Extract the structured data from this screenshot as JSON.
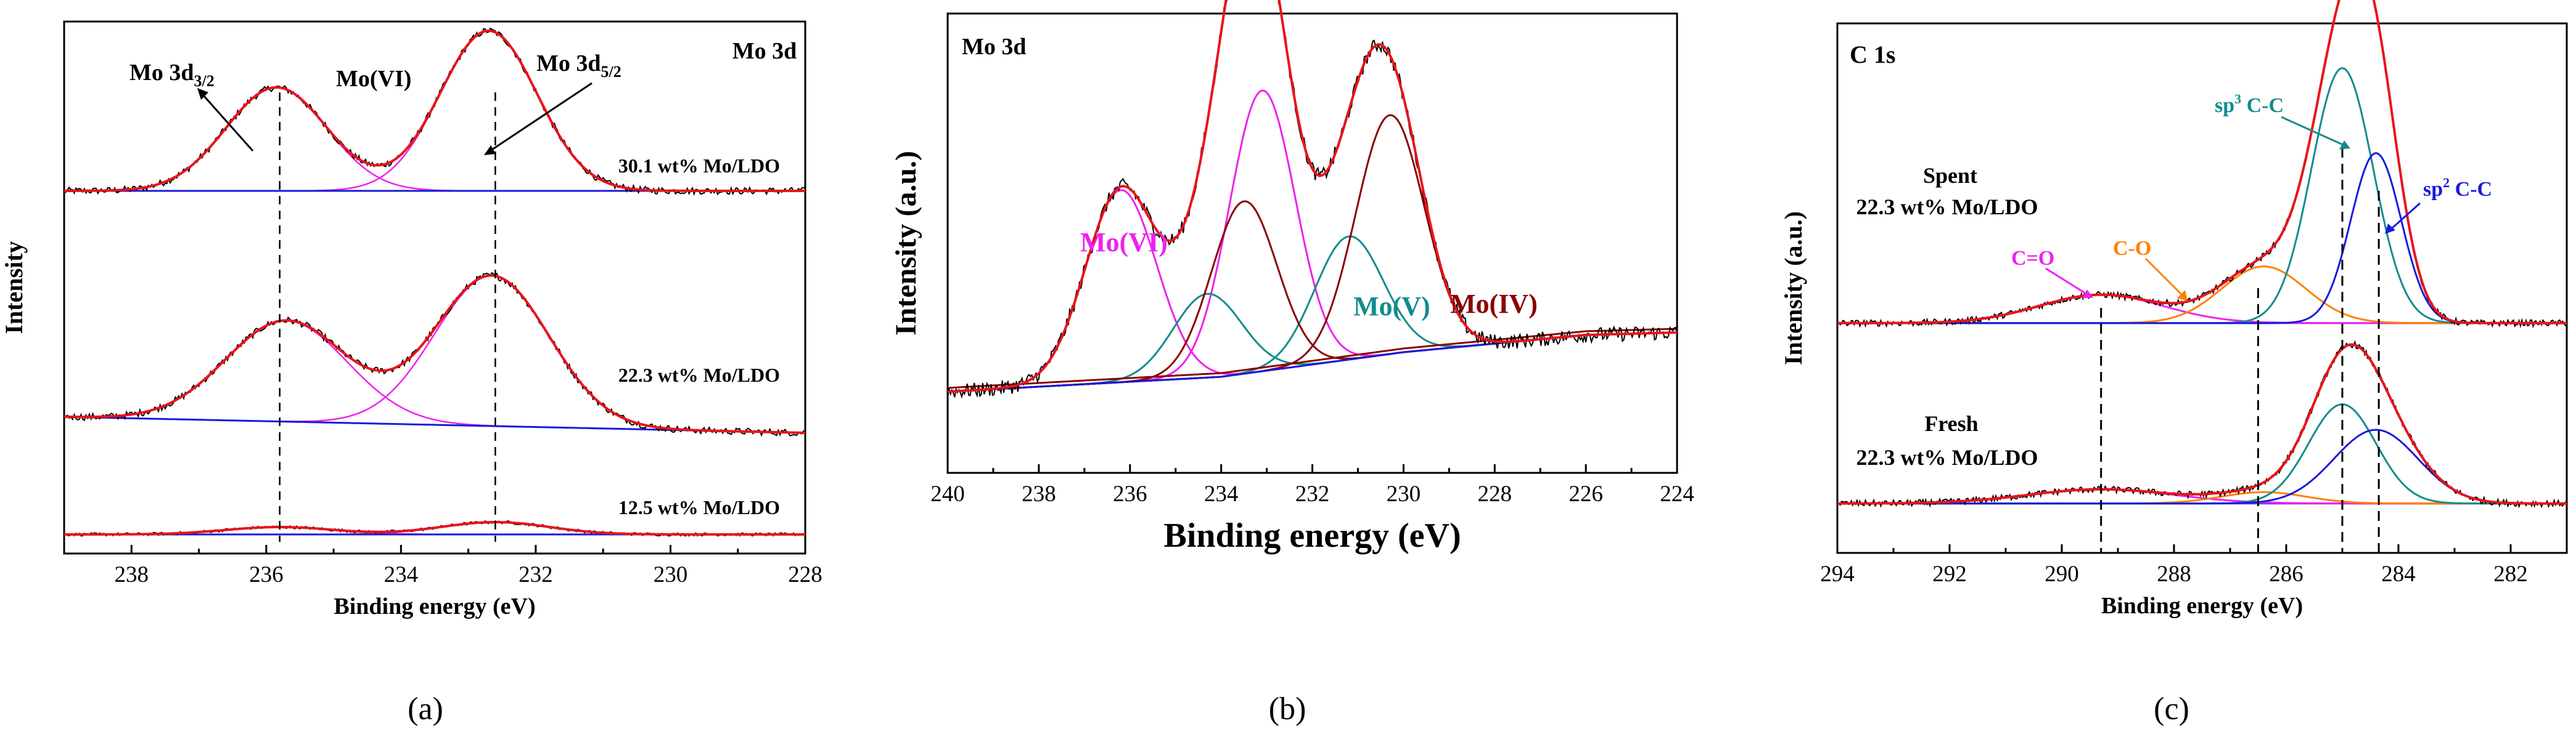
{
  "colors": {
    "raw": "#000000",
    "envelope": "#e8141b",
    "background": "#1a1adc",
    "mo6_a": "#ee22ee",
    "mo6_b": "#ee22ee",
    "mo5": "#128c8c",
    "mo4": "#8b0000",
    "c_o": "#ff8000",
    "sp3": "#128c8c",
    "sp2": "#1a1adc",
    "c_eq_o": "#ee22ee",
    "baseline_c": "#7a32e0"
  },
  "chart_data": [
    {
      "id": "a",
      "type": "line",
      "caption": "(a)",
      "xlabel": "Binding energy (eV)",
      "ylabel": "Intensity",
      "xlim": [
        239,
        228
      ],
      "xticks": [
        238,
        236,
        234,
        232,
        230,
        228
      ],
      "annotations": {
        "title": "Mo 3d",
        "mo3d32": "Mo 3d",
        "mo3d32_sub": "3/2",
        "mo6": "Mo(VI)",
        "mo3d52": "Mo 3d",
        "mo3d52_sub": "5/2"
      },
      "dashed_lines_x": [
        235.8,
        232.6
      ],
      "series": [
        {
          "name": "30.1 wt% Mo/LDO",
          "baseline": [
            1.0,
            1.0
          ],
          "peaks": [
            {
              "center": 235.85,
              "height": 4.2,
              "width": 0.75
            },
            {
              "center": 232.7,
              "height": 6.5,
              "width": 0.72
            }
          ]
        },
        {
          "name": "22.3 wt% Mo/LDO",
          "baseline": [
            0.95,
            0.3
          ],
          "peaks": [
            {
              "center": 235.7,
              "height": 4.1,
              "width": 0.9
            },
            {
              "center": 232.65,
              "height": 6.1,
              "width": 0.85
            }
          ]
        },
        {
          "name": "12.5 wt% Mo/LDO",
          "baseline": [
            0.05,
            0.05
          ],
          "peaks": [
            {
              "center": 235.8,
              "height": 0.3,
              "width": 0.8
            },
            {
              "center": 232.6,
              "height": 0.5,
              "width": 0.8
            }
          ]
        }
      ]
    },
    {
      "id": "b",
      "type": "line",
      "caption": "(b)",
      "xlabel": "Binding energy (eV)",
      "ylabel": "Intensity (a.u.)",
      "xlim": [
        240,
        224
      ],
      "xticks": [
        240,
        238,
        236,
        234,
        232,
        230,
        228,
        226,
        224
      ],
      "annotations": {
        "title": "Mo 3d",
        "mo6": "Mo(VI)",
        "mo5": "Mo(V)",
        "mo4": "Mo(IV)"
      },
      "background_points": {
        "x": [
          240,
          234,
          230,
          226,
          224
        ],
        "y": [
          6.6,
          7.2,
          8.2,
          8.9,
          9.0
        ]
      },
      "peaks": [
        {
          "name": "Mo(VI) 3d3/2",
          "center": 236.2,
          "height": 7.8,
          "width": 0.78
        },
        {
          "name": "Mo(VI) 3d5/2",
          "center": 233.1,
          "height": 11.4,
          "width": 0.72
        },
        {
          "name": "Mo(V) 3d3/2",
          "center": 234.3,
          "height": 3.4,
          "width": 0.75
        },
        {
          "name": "Mo(V) 3d5/2",
          "center": 231.2,
          "height": 5.0,
          "width": 0.75
        },
        {
          "name": "Mo(IV) 3d3/2",
          "center": 233.5,
          "height": 7.0,
          "width": 0.72
        },
        {
          "name": "Mo(IV) 3d5/2",
          "center": 230.3,
          "height": 9.7,
          "width": 0.75
        }
      ]
    },
    {
      "id": "c",
      "type": "line",
      "caption": "(c)",
      "xlabel": "Binding energy (eV)",
      "ylabel": "Intensity (a.u.)",
      "xlim": [
        294,
        281
      ],
      "xticks": [
        294,
        292,
        290,
        288,
        286,
        284,
        282
      ],
      "annotations": {
        "title": "C 1s",
        "spent": "Spent",
        "spent_sample": "22.3 wt% Mo/LDO",
        "fresh": "Fresh",
        "fresh_sample": "22.3 wt% Mo/LDO",
        "sp3": "sp",
        "sp3_sup": "3",
        "sp3_rest": " C-C",
        "sp2": "sp",
        "sp2_sup": "2",
        "sp2_rest": " C-C",
        "co": "C-O",
        "ceo": "C=O"
      },
      "dashed_lines_x": [
        289.3,
        286.5,
        285.0,
        284.35
      ],
      "series": [
        {
          "name": "Spent",
          "baseline": 0.0,
          "peaks": [
            {
              "name": "C=O",
              "center": 289.3,
              "height": 1.0,
              "width": 1.1
            },
            {
              "name": "C-O",
              "center": 286.4,
              "height": 2.0,
              "width": 0.75
            },
            {
              "name": "sp3 C-C",
              "center": 285.0,
              "height": 9.0,
              "width": 0.55
            },
            {
              "name": "sp2 C-C",
              "center": 284.4,
              "height": 6.0,
              "width": 0.45
            }
          ]
        },
        {
          "name": "Fresh",
          "baseline": 0.0,
          "peaks": [
            {
              "name": "C=O",
              "center": 289.3,
              "height": 0.5,
              "width": 1.3
            },
            {
              "name": "C-O",
              "center": 286.4,
              "height": 0.4,
              "width": 0.75
            },
            {
              "name": "sp3 C-C",
              "center": 285.0,
              "height": 3.5,
              "width": 0.6
            },
            {
              "name": "sp2 C-C",
              "center": 284.4,
              "height": 2.6,
              "width": 0.75
            }
          ]
        }
      ]
    }
  ]
}
